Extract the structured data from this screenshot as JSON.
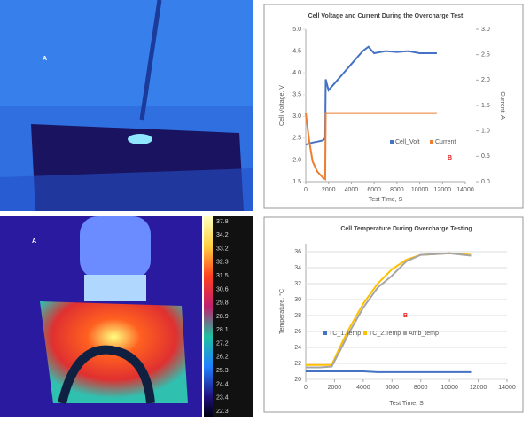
{
  "images": [
    {
      "label": "A"
    },
    {
      "label": "A",
      "colorbar": [
        "37.8",
        "34.2",
        "33.2",
        "32.3",
        "31.5",
        "30.6",
        "29.8",
        "28.9",
        "28.1",
        "27.2",
        "26.2",
        "25.3",
        "24.4",
        "23.4",
        "22.3"
      ]
    }
  ],
  "chart_data": [
    {
      "type": "line",
      "title": "Cell Voltage and Current During the Overcharge Test",
      "x_label": "Test Time, S",
      "y_label": "Cell Voltage, V",
      "y2_label": "Current, A",
      "annotation": "B",
      "legend": "lower right",
      "xlim": [
        0,
        14000
      ],
      "xticks": [
        0,
        2000,
        4000,
        6000,
        8000,
        10000,
        12000,
        14000
      ],
      "ylim": [
        1.5,
        5
      ],
      "yticks": [
        1.5,
        {
          "value": 2,
          "label": "2.0"
        },
        2.5,
        {
          "value": 3,
          "label": "3.0"
        },
        3.5,
        {
          "value": 4,
          "label": "4.0"
        },
        4.5,
        {
          "value": 5,
          "label": "5.0"
        }
      ],
      "y2lim": [
        0,
        3
      ],
      "y2ticks": [
        {
          "value": 0,
          "label": "0.0"
        },
        0.5,
        {
          "value": 1,
          "label": "1.0"
        },
        1.5,
        {
          "value": 2,
          "label": "2.0"
        },
        2.5,
        {
          "value": 3,
          "label": "3.0"
        }
      ],
      "x": [
        0,
        300,
        600,
        1000,
        1500,
        1700,
        1750,
        2000,
        3000,
        4000,
        5000,
        5500,
        6000,
        7000,
        8000,
        9000,
        10000,
        11000,
        11500
      ],
      "series": [
        {
          "name": "Cell_Volt",
          "color": "#4472c4",
          "values": [
            2.35,
            2.38,
            2.4,
            2.42,
            2.45,
            2.5,
            3.85,
            3.6,
            3.9,
            4.2,
            4.5,
            4.6,
            4.45,
            4.5,
            4.48,
            4.5,
            4.45,
            4.45,
            4.45
          ]
        },
        {
          "name": "Current",
          "color": "#ed7d31",
          "axis": "y2",
          "values": [
            1.35,
            0.8,
            0.4,
            0.2,
            0.08,
            0.05,
            1.35,
            1.35,
            1.35,
            1.35,
            1.35,
            1.35,
            1.35,
            1.35,
            1.35,
            1.35,
            1.35,
            1.35,
            1.35
          ]
        }
      ]
    },
    {
      "type": "line",
      "title": "Cell Temperature During Overcharge Testing",
      "x_label": "Test Time, S",
      "y_label": "Temperature, °C",
      "annotation": "B",
      "legend": "center",
      "xlim": [
        0,
        14000
      ],
      "xticks": [
        0,
        2000,
        4000,
        6000,
        8000,
        10000,
        12000,
        14000
      ],
      "ylim": [
        20,
        37
      ],
      "yticks": [
        20,
        22,
        24,
        26,
        28,
        30,
        32,
        34,
        36
      ],
      "grid": true,
      "x": [
        0,
        1000,
        1800,
        2500,
        3000,
        4000,
        5000,
        6000,
        7000,
        8000,
        9000,
        10000,
        11000,
        11500
      ],
      "series": [
        {
          "name": "TC_1.Temp",
          "color": "#4472c4",
          "values": [
            21,
            21,
            21,
            21,
            21,
            21,
            20.9,
            20.9,
            20.9,
            20.9,
            20.9,
            20.9,
            20.9,
            20.9
          ]
        },
        {
          "name": "TC_2.Temp",
          "color": "#ffc000",
          "values": [
            21.8,
            21.8,
            21.8,
            24.5,
            26.3,
            29.5,
            32,
            33.8,
            35,
            35.6,
            35.7,
            35.8,
            35.7,
            35.6
          ]
        },
        {
          "name": "Amb_temp",
          "color": "#a5a5a5",
          "values": [
            21.5,
            21.5,
            21.6,
            24,
            25.8,
            29,
            31.5,
            33,
            34.8,
            35.6,
            35.7,
            35.8,
            35.6,
            35.5
          ]
        }
      ]
    }
  ]
}
